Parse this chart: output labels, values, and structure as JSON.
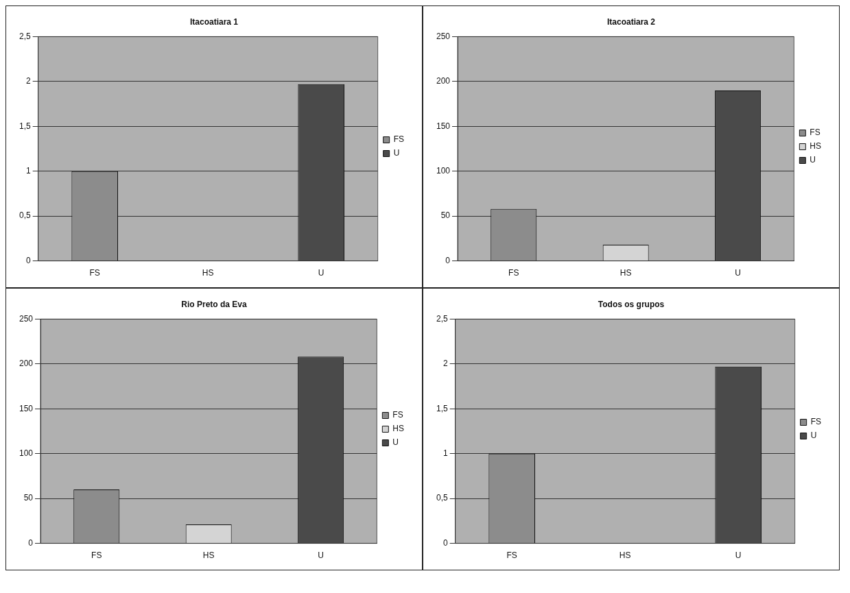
{
  "chart_data": [
    {
      "type": "bar",
      "title": "Itacoatiara 1",
      "categories": [
        "FS",
        "HS",
        "U"
      ],
      "series": [
        {
          "name": "FS",
          "color": "#8c8c8c",
          "values": [
            1,
            null,
            null
          ]
        },
        {
          "name": "U",
          "color": "#4a4a4a",
          "values": [
            null,
            null,
            1.97
          ]
        }
      ],
      "ylim": [
        0,
        2.5
      ],
      "yticks": [
        0,
        {
          "value": 0.5,
          "label": "0,5"
        },
        1,
        {
          "value": 1.5,
          "label": "1,5"
        },
        2,
        {
          "value": 2.5,
          "label": "2,5"
        }
      ],
      "grid": "y",
      "legend": "right"
    },
    {
      "type": "bar",
      "title": "Itacoatiara 2",
      "categories": [
        "FS",
        "HS",
        "U"
      ],
      "series": [
        {
          "name": "FS",
          "color": "#8c8c8c",
          "values": [
            58,
            null,
            null
          ]
        },
        {
          "name": "HS",
          "color": "#d4d4d4",
          "values": [
            null,
            18,
            null
          ]
        },
        {
          "name": "U",
          "color": "#4a4a4a",
          "values": [
            null,
            null,
            190
          ]
        }
      ],
      "ylim": [
        0,
        250
      ],
      "yticks": [
        0,
        50,
        100,
        150,
        200,
        250
      ],
      "grid": "y",
      "legend": "right"
    },
    {
      "type": "bar",
      "title": "Rio Preto da Eva",
      "categories": [
        "FS",
        "HS",
        "U"
      ],
      "series": [
        {
          "name": "FS",
          "color": "#8c8c8c",
          "values": [
            60,
            null,
            null
          ]
        },
        {
          "name": "HS",
          "color": "#d4d4d4",
          "values": [
            null,
            21,
            null
          ]
        },
        {
          "name": "U",
          "color": "#4a4a4a",
          "values": [
            null,
            null,
            208
          ]
        }
      ],
      "ylim": [
        0,
        250
      ],
      "yticks": [
        0,
        50,
        100,
        150,
        200,
        250
      ],
      "grid": "y",
      "legend": "right"
    },
    {
      "type": "bar",
      "title": "Todos os grupos",
      "categories": [
        "FS",
        "HS",
        "U"
      ],
      "series": [
        {
          "name": "FS",
          "color": "#8c8c8c",
          "values": [
            1,
            null,
            null
          ]
        },
        {
          "name": "U",
          "color": "#4a4a4a",
          "values": [
            null,
            null,
            1.97
          ]
        }
      ],
      "ylim": [
        0,
        2.5
      ],
      "yticks": [
        0,
        {
          "value": 0.5,
          "label": "0,5"
        },
        1,
        {
          "value": 1.5,
          "label": "1,5"
        },
        2,
        {
          "value": 2.5,
          "label": "2,5"
        }
      ],
      "grid": "y",
      "legend": "right"
    }
  ]
}
